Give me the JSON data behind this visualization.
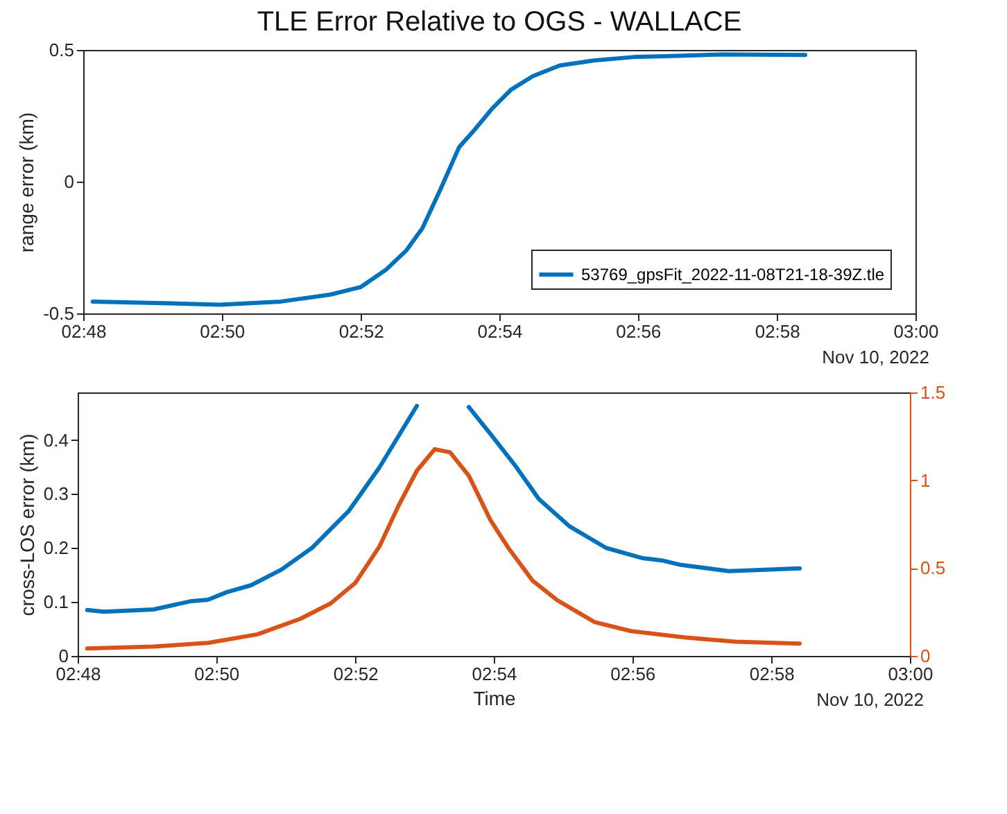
{
  "chart_data": [
    {
      "type": "line",
      "title": "TLE Error Relative to OGS - WALLACE",
      "ylabel": "range error (km)",
      "legend": "bottom right",
      "annotations": [
        "Nov 10, 2022"
      ],
      "xlim": [
        2.8,
        3.0
      ],
      "xticks": [
        {
          "value": 2.8,
          "label": "02:48"
        },
        {
          "value": 2.8333,
          "label": "02:50"
        },
        {
          "value": 2.8667,
          "label": "02:52"
        },
        {
          "value": 2.9,
          "label": "02:54"
        },
        {
          "value": 2.9333,
          "label": "02:56"
        },
        {
          "value": 2.9667,
          "label": "02:58"
        },
        {
          "value": 3.0,
          "label": "03:00"
        }
      ],
      "ylim": [
        -0.5,
        0.5
      ],
      "yticks": [
        -0.5,
        0,
        0.5
      ],
      "series": [
        {
          "name": "53769_gpsFit_2022-11-08T21-18-39Z.tle",
          "color": "#0072bd",
          "x": [
            2.8023,
            2.821,
            2.8328,
            2.8475,
            2.8593,
            2.8667,
            2.8727,
            2.8777,
            2.8815,
            2.8858,
            2.8903,
            2.894,
            2.8983,
            2.9028,
            2.908,
            2.9145,
            2.9227,
            2.933,
            2.9403,
            2.9535,
            2.9735
          ],
          "values": [
            -0.455,
            -0.462,
            -0.467,
            -0.455,
            -0.429,
            -0.4,
            -0.335,
            -0.26,
            -0.177,
            -0.031,
            0.13,
            0.196,
            0.278,
            0.349,
            0.4,
            0.441,
            0.46,
            0.474,
            0.476,
            0.483,
            0.481
          ]
        }
      ]
    },
    {
      "type": "line",
      "xlabel": "Time",
      "ylabel": "cross-LOS error (km)",
      "annotations": [
        "Nov 10, 2022"
      ],
      "xlim": [
        2.8,
        3.0
      ],
      "xticks": [
        {
          "value": 2.8,
          "label": "02:48"
        },
        {
          "value": 2.8333,
          "label": "02:50"
        },
        {
          "value": 2.8667,
          "label": "02:52"
        },
        {
          "value": 2.9,
          "label": "02:54"
        },
        {
          "value": 2.9333,
          "label": "02:56"
        },
        {
          "value": 2.9667,
          "label": "02:58"
        },
        {
          "value": 3.0,
          "label": "03:00"
        }
      ],
      "ylim": [
        0,
        0.488
      ],
      "yticks": [
        0,
        0.1,
        0.2,
        0.3,
        0.4
      ],
      "y2lim": [
        0,
        1.5
      ],
      "y2ticks": [
        0,
        0.5,
        1,
        1.5
      ],
      "series": [
        {
          "color": "#0072bd",
          "x": [
            2.8023,
            2.8063,
            2.8182,
            2.827,
            2.8313,
            2.8358,
            2.8417,
            2.849,
            2.8563,
            2.8652,
            2.8725,
            2.8815,
            2.8858,
            2.8903,
            2.894,
            2.8992,
            2.905,
            2.9108,
            2.9182,
            2.927,
            2.9358,
            2.9403,
            2.9447,
            2.9565,
            2.9735
          ],
          "values": [
            0.085,
            0.082,
            0.086,
            0.101,
            0.104,
            0.118,
            0.131,
            0.16,
            0.2,
            0.269,
            0.349,
            0.463,
            null,
            null,
            0.461,
            0.411,
            0.354,
            0.291,
            0.24,
            0.2,
            0.181,
            0.177,
            0.169,
            0.157,
            0.162
          ]
        },
        {
          "color": "#d95319",
          "axis": "y2",
          "x": [
            2.8023,
            2.8182,
            2.8313,
            2.8432,
            2.8535,
            2.8608,
            2.8667,
            2.8725,
            2.877,
            2.8815,
            2.8858,
            2.8895,
            2.894,
            2.8992,
            2.9035,
            2.9093,
            2.9153,
            2.9242,
            2.933,
            2.9462,
            2.958,
            2.9735
          ],
          "values": [
            0.042,
            0.053,
            0.074,
            0.123,
            0.211,
            0.299,
            0.415,
            0.622,
            0.85,
            1.054,
            1.177,
            1.159,
            1.026,
            0.773,
            0.615,
            0.429,
            0.316,
            0.193,
            0.141,
            0.105,
            0.081,
            0.07
          ]
        }
      ]
    }
  ]
}
